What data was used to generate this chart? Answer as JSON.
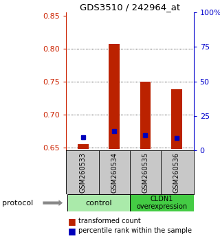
{
  "title": "GDS3510 / 242964_at",
  "samples": [
    "GSM260533",
    "GSM260534",
    "GSM260535",
    "GSM260536"
  ],
  "red_bar_bottom": 0.648,
  "red_bar_tops": [
    0.655,
    0.807,
    0.75,
    0.738
  ],
  "blue_y": [
    0.665,
    0.675,
    0.668,
    0.664
  ],
  "ylim_left": [
    0.645,
    0.855
  ],
  "ylim_right": [
    0,
    100
  ],
  "yticks_left": [
    0.65,
    0.7,
    0.75,
    0.8,
    0.85
  ],
  "yticks_right": [
    0,
    25,
    50,
    75,
    100
  ],
  "ytick_labels_right": [
    "0",
    "25",
    "50",
    "75",
    "100%"
  ],
  "left_color": "#cc2200",
  "right_color": "#0000cc",
  "bar_color": "#bb2200",
  "blue_color": "#0000bb",
  "bar_width": 0.35,
  "ctrl_color": "#aaeaaa",
  "cldn_color": "#44cc44",
  "xlabel_area_color": "#c8c8c8",
  "legend_red_label": "transformed count",
  "legend_blue_label": "percentile rank within the sample"
}
